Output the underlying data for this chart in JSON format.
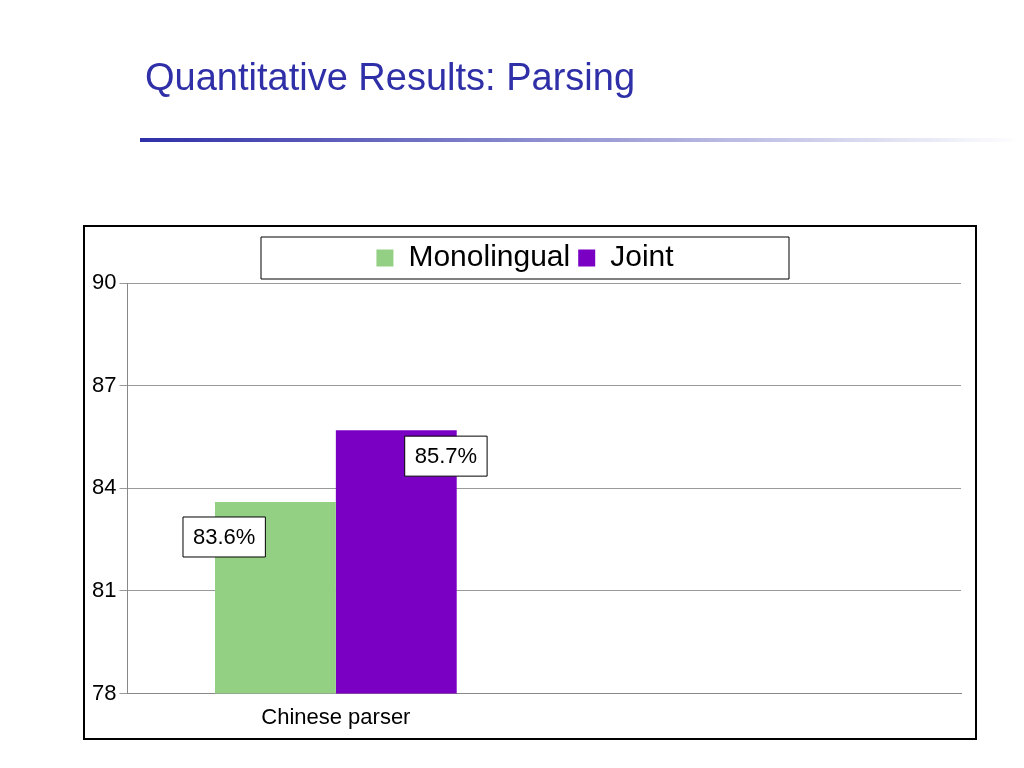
{
  "chart_data": {
    "type": "bar",
    "title": "Quantitative Results: Parsing",
    "categories": [
      "Chinese parser",
      null
    ],
    "series": [
      {
        "name": "Monolingual",
        "color": "#93d084",
        "values": [
          83.6,
          null
        ],
        "value_labels": [
          "83.6%",
          null
        ]
      },
      {
        "name": "Joint",
        "color": "#7a00c4",
        "values": [
          85.7,
          null
        ],
        "value_labels": [
          "85.7%",
          null
        ]
      }
    ],
    "ylim": [
      78,
      90
    ],
    "yticks": [
      78,
      81,
      84,
      87,
      90
    ],
    "grid": "y",
    "legend": "top"
  }
}
